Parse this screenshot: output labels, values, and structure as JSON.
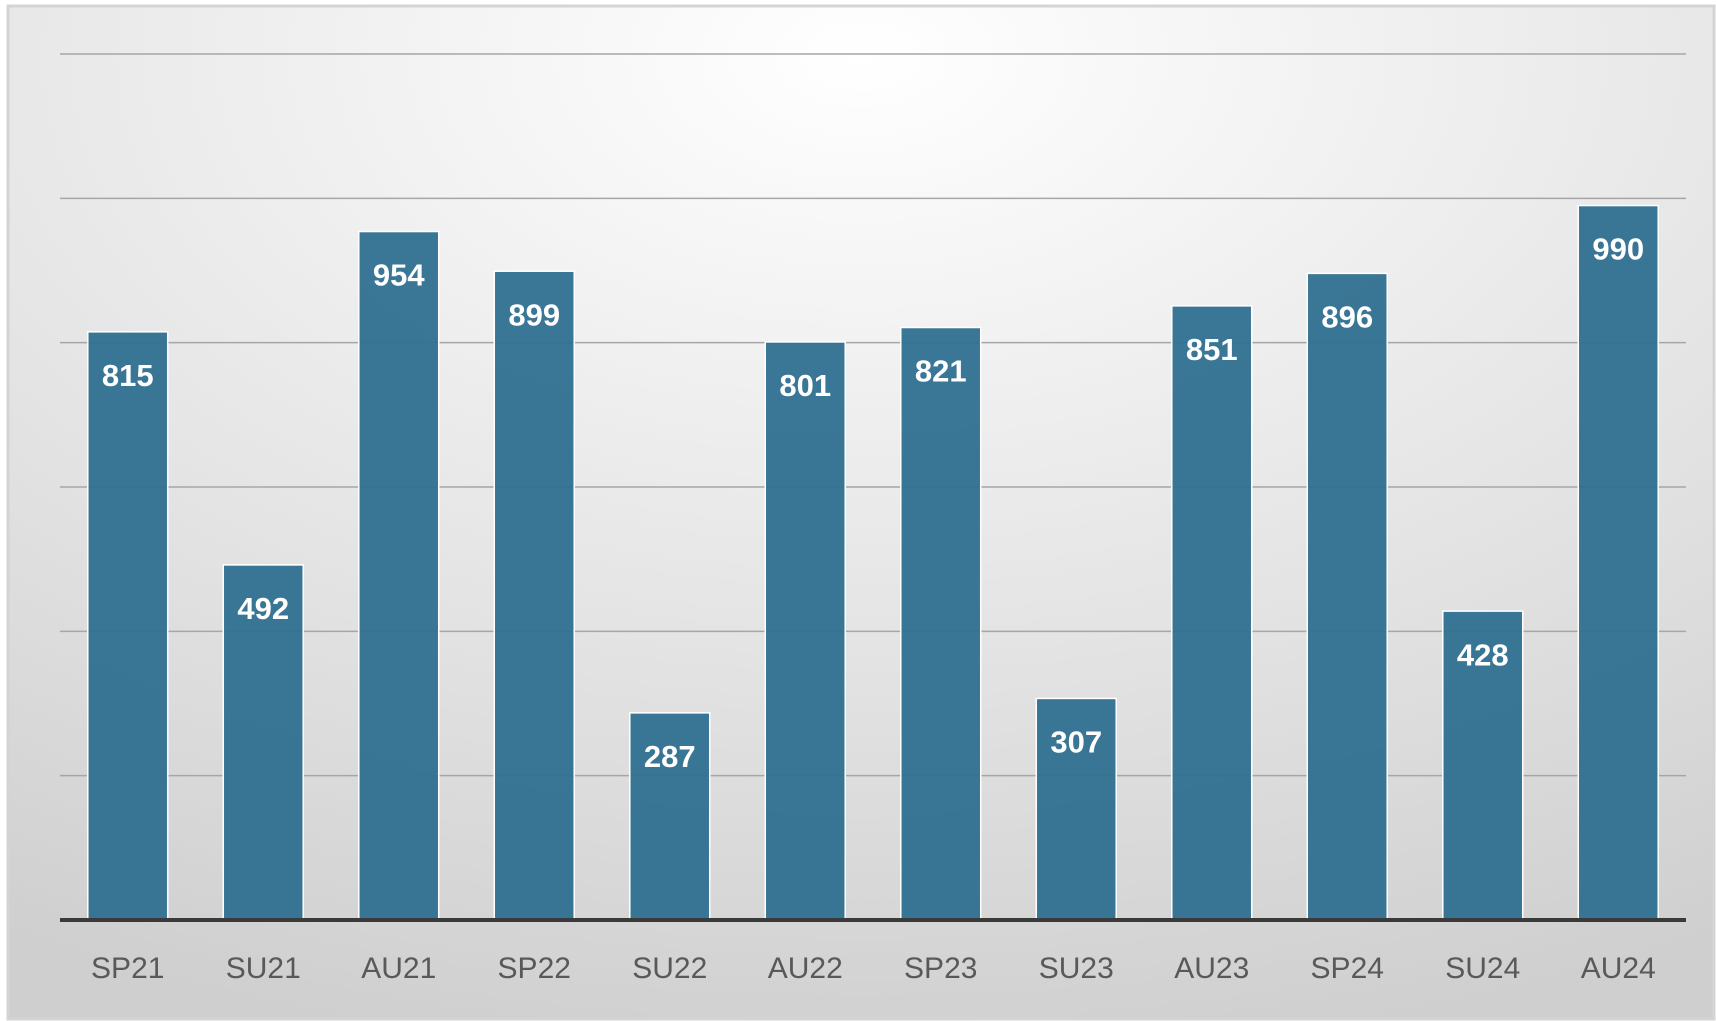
{
  "chart_data": {
    "type": "bar",
    "categories": [
      "SP21",
      "SU21",
      "AU21",
      "SP22",
      "SU22",
      "AU22",
      "SP23",
      "SU23",
      "AU23",
      "SP24",
      "SU24",
      "AU24"
    ],
    "values": [
      815,
      492,
      954,
      899,
      287,
      801,
      821,
      307,
      851,
      896,
      428,
      990
    ],
    "color": "#2f6f8f",
    "ylim": [
      0,
      1200
    ],
    "yticks": [
      0,
      200,
      400,
      600,
      800,
      1000,
      1200
    ],
    "grid": true
  }
}
